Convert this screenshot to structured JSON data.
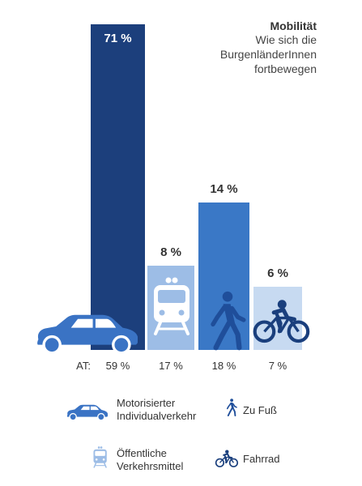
{
  "header": {
    "title": "Mobilität",
    "subtitle": "Wie sich die BurgenländerInnen fortbewegen"
  },
  "chart_data": {
    "type": "bar",
    "title": "Mobilität",
    "subtitle": "Wie sich die BurgenländerInnen fortbewegen",
    "categories": [
      "Motorisierter Individualverkehr",
      "Öffentliche Verkehrsmittel",
      "Zu Fuß",
      "Fahrrad"
    ],
    "series": [
      {
        "values": [
          71,
          8,
          14,
          6
        ]
      }
    ],
    "value_labels": [
      "71 %",
      "8 %",
      "14 %",
      "6 %"
    ],
    "reference": {
      "prefix": "AT:",
      "values": [
        59,
        17,
        18,
        7
      ],
      "labels": [
        "59 %",
        "17 %",
        "18 %",
        "7 %"
      ]
    },
    "ylim": [
      0,
      100
    ],
    "grid": false,
    "legend_position": "bottom"
  },
  "legend": [
    {
      "icon": "car-icon",
      "lines": [
        "Motorisierter",
        "Individualverkehr"
      ],
      "color": "#3a73c4"
    },
    {
      "icon": "walker-icon",
      "lines": [
        "Zu Fuß"
      ],
      "color": "#1f4e9a"
    },
    {
      "icon": "train-icon",
      "lines": [
        "Öffentliche",
        "Verkehrsmittel"
      ],
      "color": "#9dbde6"
    },
    {
      "icon": "bicycle-icon",
      "lines": [
        "Fahrrad"
      ],
      "color": "#1a3f7d"
    }
  ],
  "colors": {
    "bar_car": "#1c3f7c",
    "bar_train": "#9dbde6",
    "bar_walk": "#3a78c6",
    "bar_bike": "#c7daf1",
    "car_icon": "#3a73c4",
    "train_icon": "#ffffff",
    "walk_icon": "#1f4e9a",
    "bike_icon": "#1a3f7d"
  }
}
